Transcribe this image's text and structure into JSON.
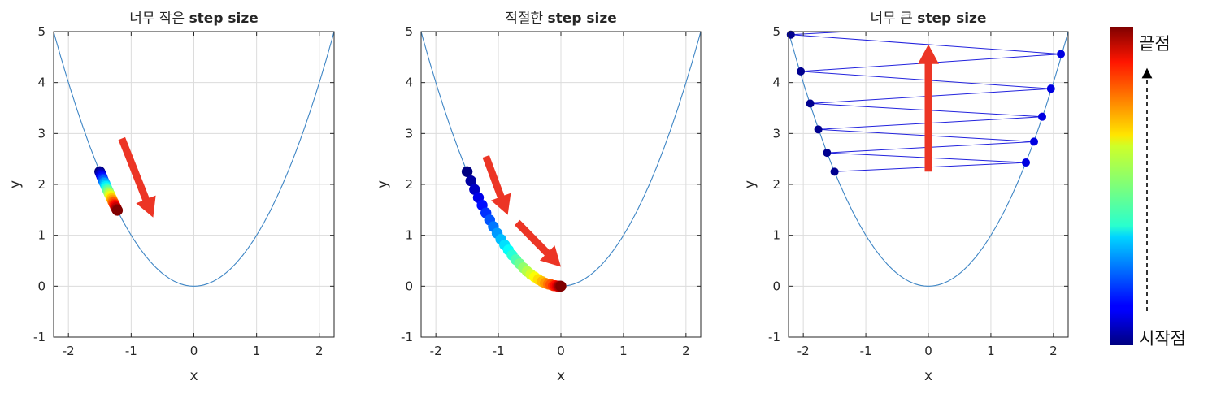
{
  "chart_data": [
    {
      "type": "line",
      "title_prefix": "너무 작은 ",
      "title_bold": "step size",
      "xlabel": "x",
      "ylabel": "y",
      "xlim": [
        -2.236,
        2.236
      ],
      "ylim": [
        -1,
        5
      ],
      "xticks": [
        -2,
        -1,
        0,
        1,
        2
      ],
      "yticks": [
        -1,
        0,
        1,
        2,
        3,
        4,
        5
      ],
      "grid": true,
      "curve": "y = x^2",
      "steps": {
        "x": [
          -1.5,
          -1.49,
          -1.48,
          -1.47,
          -1.46,
          -1.45,
          -1.44,
          -1.43,
          -1.42,
          -1.41,
          -1.4,
          -1.39,
          -1.38,
          -1.37,
          -1.36,
          -1.35,
          -1.34,
          -1.33,
          -1.32,
          -1.31,
          -1.3,
          -1.29,
          -1.28,
          -1.27,
          -1.26,
          -1.25,
          -1.24,
          -1.23,
          -1.22
        ],
        "y": [
          2.25,
          2.22,
          2.19,
          2.16,
          2.13,
          2.1,
          2.07,
          2.04,
          2.02,
          1.99,
          1.96,
          1.93,
          1.9,
          1.88,
          1.85,
          1.82,
          1.8,
          1.77,
          1.74,
          1.72,
          1.69,
          1.66,
          1.64,
          1.61,
          1.59,
          1.56,
          1.54,
          1.51,
          1.49
        ]
      },
      "arrows": [
        {
          "from": [
            -1.15,
            2.9
          ],
          "to": [
            -0.65,
            1.35
          ]
        }
      ]
    },
    {
      "type": "line",
      "title_prefix": "적절한 ",
      "title_bold": "step size",
      "xlabel": "x",
      "ylabel": "y",
      "xlim": [
        -2.236,
        2.236
      ],
      "ylim": [
        -1,
        5
      ],
      "xticks": [
        -2,
        -1,
        0,
        1,
        2
      ],
      "yticks": [
        -1,
        0,
        1,
        2,
        3,
        4,
        5
      ],
      "grid": true,
      "curve": "y = x^2",
      "steps": {
        "x": [
          -1.5,
          -1.44,
          -1.38,
          -1.32,
          -1.26,
          -1.2,
          -1.14,
          -1.08,
          -1.02,
          -0.96,
          -0.9,
          -0.84,
          -0.78,
          -0.72,
          -0.66,
          -0.6,
          -0.54,
          -0.48,
          -0.42,
          -0.36,
          -0.3,
          -0.25,
          -0.2,
          -0.16,
          -0.12,
          -0.09,
          -0.06,
          -0.04,
          -0.02,
          0.0
        ],
        "y": [
          2.25,
          2.07,
          1.9,
          1.74,
          1.59,
          1.44,
          1.3,
          1.17,
          1.04,
          0.92,
          0.81,
          0.71,
          0.61,
          0.52,
          0.44,
          0.36,
          0.29,
          0.23,
          0.18,
          0.13,
          0.09,
          0.06,
          0.04,
          0.03,
          0.01,
          0.01,
          0.0,
          0.0,
          0.0,
          0.0
        ]
      },
      "arrows": [
        {
          "from": [
            -1.2,
            2.55
          ],
          "to": [
            -0.85,
            1.4
          ]
        },
        {
          "from": [
            -0.7,
            1.25
          ],
          "to": [
            0.0,
            0.38
          ]
        }
      ]
    },
    {
      "type": "line",
      "title_prefix": "너무 큰 ",
      "title_bold": "step size",
      "xlabel": "x",
      "ylabel": "y",
      "xlim": [
        -2.236,
        2.236
      ],
      "ylim": [
        -1,
        5
      ],
      "xticks": [
        -2,
        -1,
        0,
        1,
        2
      ],
      "yticks": [
        -1,
        0,
        1,
        2,
        3,
        4,
        5
      ],
      "grid": true,
      "curve": "y = x^2",
      "steps": {
        "x": [
          -1.5,
          1.56,
          -1.62,
          1.69,
          -1.76,
          1.82,
          -1.89,
          1.96,
          -2.04,
          2.12,
          -2.2,
          2.29
        ],
        "y": [
          2.25,
          2.43,
          2.62,
          2.84,
          3.08,
          3.33,
          3.59,
          3.88,
          4.22,
          4.56,
          4.94,
          5.24
        ]
      },
      "arrows": [
        {
          "from": [
            0.0,
            2.25
          ],
          "to": [
            0.0,
            4.75
          ]
        }
      ]
    }
  ],
  "colorbar": {
    "colormap": "jet",
    "top_label": "끝점",
    "bottom_label": "시작점"
  }
}
